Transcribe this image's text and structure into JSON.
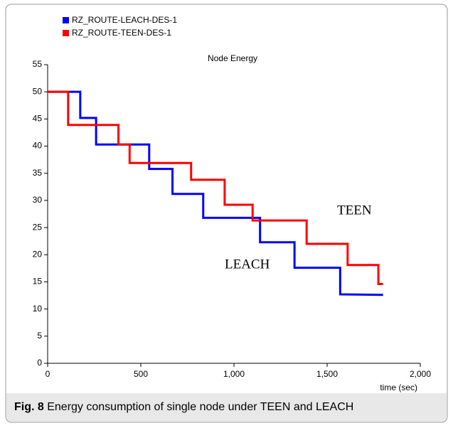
{
  "chart_data": {
    "type": "line",
    "title": "Node Energy",
    "x_label": "time (sec)",
    "annotations": [
      "TEEN",
      "LEACH"
    ],
    "caption_label": "Fig. 8",
    "caption_text": "Energy consumption of single node under TEEN and LEACH",
    "xlim": [
      0,
      2000
    ],
    "xticks": [
      0,
      500,
      {
        "value": 1000,
        "label": "1,000"
      },
      {
        "value": 1500,
        "label": "1,500"
      },
      {
        "value": 2000,
        "label": "2,000"
      }
    ],
    "ylim": [
      0,
      55
    ],
    "yticks": [
      0,
      5,
      10,
      15,
      20,
      25,
      30,
      35,
      40,
      45,
      50,
      55
    ],
    "grid": false,
    "legend": "top-left",
    "series": [
      {
        "name": "RZ_ROUTE-LEACH-DES-1",
        "color": "#0000ff",
        "x": [
          0,
          175,
          175,
          260,
          260,
          545,
          545,
          670,
          670,
          835,
          835,
          1140,
          1140,
          1325,
          1325,
          1570,
          1570,
          1800
        ],
        "values": [
          50,
          50,
          45.2,
          45.2,
          40.3,
          40.3,
          35.8,
          35.8,
          31.2,
          31.2,
          26.8,
          26.8,
          22.3,
          22.3,
          17.6,
          17.6,
          12.7,
          12.6
        ]
      },
      {
        "name": "RZ_ROUTE-TEEN-DES-1",
        "color": "#ff0000",
        "x": [
          0,
          110,
          110,
          380,
          380,
          440,
          440,
          770,
          770,
          950,
          950,
          1100,
          1100,
          1390,
          1390,
          1610,
          1610,
          1775,
          1775,
          1800
        ],
        "values": [
          50,
          50,
          43.9,
          43.9,
          40.3,
          40.3,
          36.9,
          36.9,
          33.8,
          33.8,
          29.2,
          29.2,
          26.3,
          26.3,
          22,
          22,
          18.1,
          18.1,
          14.6,
          14.6
        ]
      }
    ]
  }
}
